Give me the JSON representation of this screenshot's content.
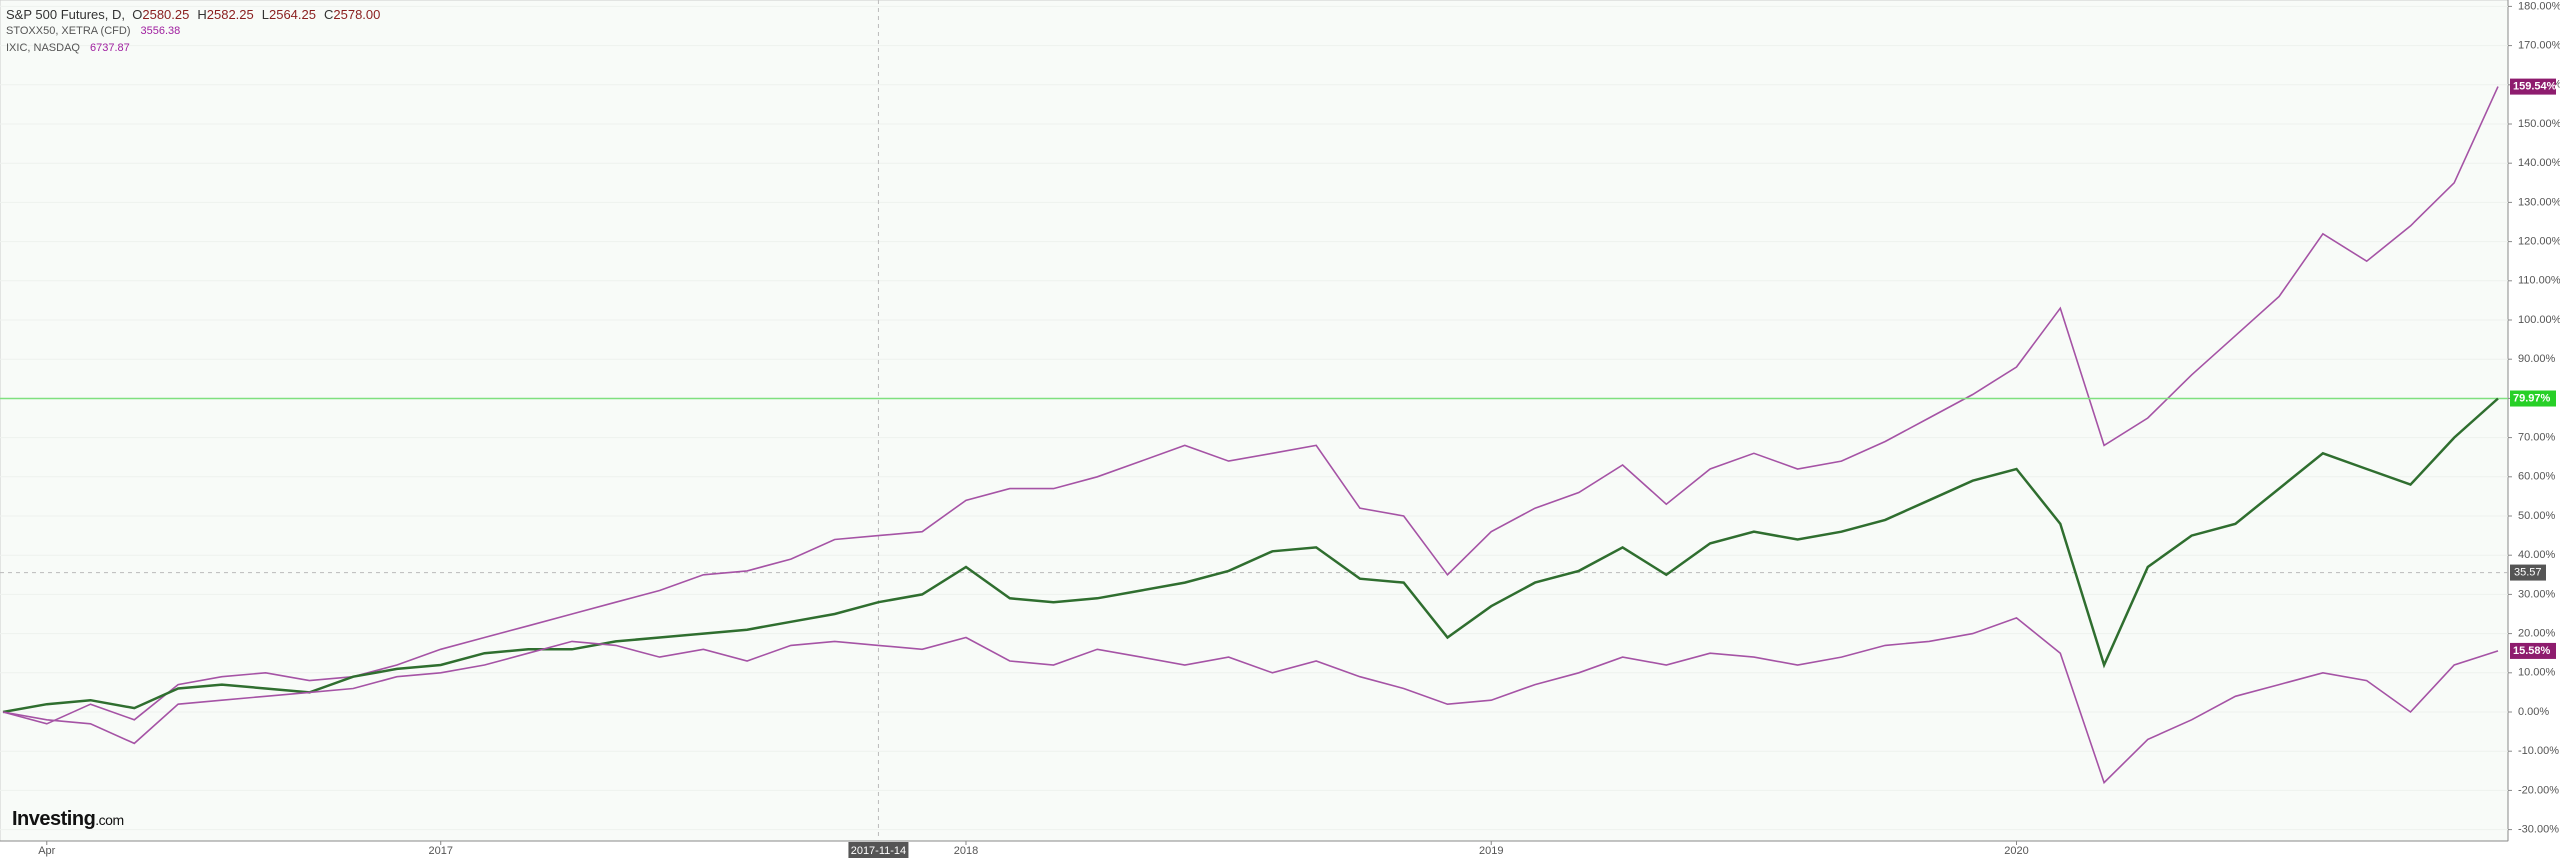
{
  "header": {
    "symbol": "S&P 500 Futures, D,",
    "ohlc": [
      [
        "O",
        "2580.25"
      ],
      [
        "H",
        "2582.25"
      ],
      [
        "L",
        "2564.25"
      ],
      [
        "C",
        "2578.00"
      ]
    ],
    "compare": [
      {
        "name": "STOXX50, XETRA (CFD)",
        "value": "3556.38"
      },
      {
        "name": "IXIC, NASDAQ",
        "value": "6737.87"
      }
    ]
  },
  "logo": {
    "brand": "Investing",
    "suffix": ".com"
  },
  "chart_data": {
    "type": "line",
    "categories": [
      null,
      "Apr",
      null,
      null,
      null,
      null,
      null,
      null,
      null,
      null,
      "2017",
      null,
      null,
      null,
      null,
      null,
      null,
      null,
      null,
      null,
      "2017-11-14",
      null,
      "2018",
      null,
      null,
      null,
      null,
      null,
      null,
      null,
      null,
      null,
      null,
      null,
      "2019",
      null,
      null,
      null,
      null,
      null,
      null,
      null,
      null,
      null,
      null,
      null,
      "2020",
      null,
      null,
      null,
      null,
      null,
      null,
      null,
      null,
      null,
      null,
      null
    ],
    "series": [
      {
        "name": "IXIC, NASDAQ",
        "color": "#a553a5",
        "badge_color": "#8e1c6e",
        "last_label": "159.54%",
        "values": [
          0,
          -3,
          2,
          -2,
          7,
          9,
          10,
          8,
          9,
          12,
          16,
          19,
          22,
          25,
          28,
          31,
          35,
          36,
          39,
          44,
          45,
          46,
          54,
          57,
          57,
          60,
          64,
          68,
          64,
          66,
          68,
          52,
          50,
          35,
          46,
          52,
          56,
          63,
          53,
          62,
          66,
          62,
          64,
          69,
          75,
          81,
          88,
          103,
          68,
          75,
          86,
          96,
          106,
          122,
          115,
          124,
          135,
          159.54
        ]
      },
      {
        "name": "S&P 500 Futures",
        "color": "#2f6e2f",
        "badge_color": "#27d027",
        "last_label": "79.97%",
        "ref_line_color": "#7fe07f",
        "values": [
          0,
          2,
          3,
          1,
          6,
          7,
          6,
          5,
          9,
          11,
          12,
          15,
          16,
          16,
          18,
          19,
          20,
          21,
          23,
          25,
          28,
          30,
          37,
          29,
          28,
          29,
          31,
          33,
          36,
          41,
          42,
          34,
          33,
          19,
          27,
          33,
          36,
          42,
          35,
          43,
          46,
          44,
          46,
          49,
          54,
          59,
          62,
          48,
          12,
          37,
          45,
          48,
          57,
          66,
          62,
          58,
          70,
          79.97
        ]
      },
      {
        "name": "STOXX50, XETRA (CFD)",
        "color": "#a553a5",
        "badge_color": "#8e1c6e",
        "last_label": "15.58%",
        "values": [
          0,
          -2,
          -3,
          -8,
          2,
          3,
          4,
          5,
          6,
          9,
          10,
          12,
          15,
          18,
          17,
          14,
          16,
          13,
          17,
          18,
          17,
          16,
          19,
          13,
          12,
          16,
          14,
          12,
          14,
          10,
          13,
          9,
          6,
          2,
          3,
          7,
          10,
          14,
          12,
          15,
          14,
          12,
          14,
          17,
          18,
          20,
          24,
          15,
          -18,
          -7,
          -2,
          4,
          7,
          10,
          8,
          0,
          12,
          15.58
        ]
      }
    ],
    "crosshair": {
      "y": 35.57
    },
    "ylim": [
      -30,
      180
    ],
    "yticks": [
      {
        "value": -30,
        "label": "-30.00%"
      },
      {
        "value": -20,
        "label": "-20.00%"
      },
      {
        "value": -10,
        "label": "-10.00%"
      },
      {
        "value": 0,
        "label": "0.00%"
      },
      {
        "value": 10,
        "label": "10.00%"
      },
      {
        "value": 20,
        "label": "20.00%"
      },
      {
        "value": 30,
        "label": "30.00%"
      },
      {
        "value": 40,
        "label": "40.00%"
      },
      {
        "value": 50,
        "label": "50.00%"
      },
      {
        "value": 60,
        "label": "60.00%"
      },
      {
        "value": 70,
        "label": "70.00%"
      },
      {
        "value": 80,
        "label": "80.00%"
      },
      {
        "value": 90,
        "label": "90.00%"
      },
      {
        "value": 100,
        "label": "100.00%"
      },
      {
        "value": 110,
        "label": "110.00%"
      },
      {
        "value": 120,
        "label": "120.00%"
      },
      {
        "value": 130,
        "label": "130.00%"
      },
      {
        "value": 140,
        "label": "140.00%"
      },
      {
        "value": 150,
        "label": "150.00%"
      },
      {
        "value": 160,
        "label": "160.00%"
      },
      {
        "value": 170,
        "label": "170.00%"
      },
      {
        "value": 180,
        "label": "180.00%"
      }
    ],
    "grid": true
  }
}
